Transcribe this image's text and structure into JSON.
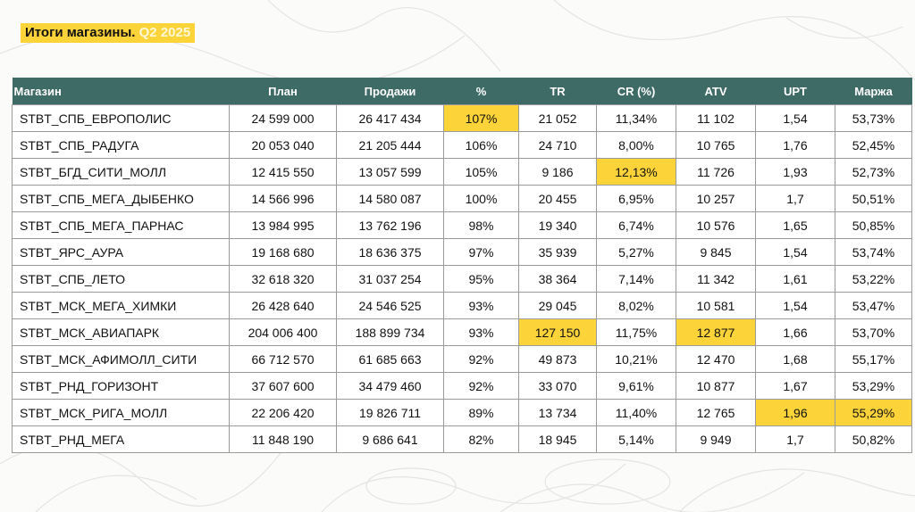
{
  "title": {
    "main": "Итоги магазины.",
    "accent": "Q2 2025"
  },
  "colors": {
    "header_bg": "#3e6b66",
    "highlight": "#fdd33a"
  },
  "table": {
    "columns": [
      "Магазин",
      "План",
      "Продажи",
      "%",
      "TR",
      "CR (%)",
      "ATV",
      "UPT",
      "Маржа"
    ],
    "rows": [
      {
        "cells": [
          "STBT_СПБ_ЕВРОПОЛИС",
          "24 599 000",
          "26 417 434",
          "107%",
          "21 052",
          "11,34%",
          "11 102",
          "1,54",
          "53,73%"
        ],
        "highlight": [
          3
        ]
      },
      {
        "cells": [
          "STBT_СПБ_РАДУГА",
          "20 053 040",
          "21 205 444",
          "106%",
          "24 710",
          "8,00%",
          "10 765",
          "1,76",
          "52,45%"
        ],
        "highlight": []
      },
      {
        "cells": [
          "STBT_БГД_СИТИ_МОЛЛ",
          "12 415 550",
          "13 057 599",
          "105%",
          "9 186",
          "12,13%",
          "11 726",
          "1,93",
          "52,73%"
        ],
        "highlight": [
          5
        ]
      },
      {
        "cells": [
          "STBT_СПБ_МЕГА_ДЫБЕНКО",
          "14 566 996",
          "14 580 087",
          "100%",
          "20 455",
          "6,95%",
          "10 257",
          "1,7",
          "50,51%"
        ],
        "highlight": []
      },
      {
        "cells": [
          "STBT_СПБ_МЕГА_ПАРНАС",
          "13 984 995",
          "13 762 196",
          "98%",
          "19 340",
          "6,74%",
          "10 576",
          "1,65",
          "50,85%"
        ],
        "highlight": []
      },
      {
        "cells": [
          "STBT_ЯРС_АУРА",
          "19 168 680",
          "18 636 375",
          "97%",
          "35 939",
          "5,27%",
          "9 845",
          "1,54",
          "53,74%"
        ],
        "highlight": []
      },
      {
        "cells": [
          "STBT_СПБ_ЛЕТО",
          "32 618 320",
          "31 037 254",
          "95%",
          "38 364",
          "7,14%",
          "11 342",
          "1,61",
          "53,22%"
        ],
        "highlight": []
      },
      {
        "cells": [
          "STBT_МСК_МЕГА_ХИМКИ",
          "26 428 640",
          "24 546 525",
          "93%",
          "29 045",
          "8,02%",
          "10 581",
          "1,54",
          "53,47%"
        ],
        "highlight": []
      },
      {
        "cells": [
          "STBT_МСК_АВИАПАРК",
          "204 006 400",
          "188 899 734",
          "93%",
          "127 150",
          "11,75%",
          "12 877",
          "1,66",
          "53,70%"
        ],
        "highlight": [
          4,
          6
        ]
      },
      {
        "cells": [
          "STBT_МСК_АФИМОЛЛ_СИТИ",
          "66 712 570",
          "61 685 663",
          "92%",
          "49 873",
          "10,21%",
          "12 470",
          "1,68",
          "55,17%"
        ],
        "highlight": []
      },
      {
        "cells": [
          "STBT_РНД_ГОРИЗОНТ",
          "37 607 600",
          "34 479 460",
          "92%",
          "33 070",
          "9,61%",
          "10 877",
          "1,67",
          "53,29%"
        ],
        "highlight": []
      },
      {
        "cells": [
          "STBT_МСК_РИГА_МОЛЛ",
          "22 206 420",
          "19 826 711",
          "89%",
          "13 734",
          "11,40%",
          "12 765",
          "1,96",
          "55,29%"
        ],
        "highlight": [
          7,
          8
        ]
      },
      {
        "cells": [
          "STBT_РНД_МЕГА",
          "11 848 190",
          "9 686 641",
          "82%",
          "18 945",
          "5,14%",
          "9 949",
          "1,7",
          "50,82%"
        ],
        "highlight": []
      }
    ]
  }
}
